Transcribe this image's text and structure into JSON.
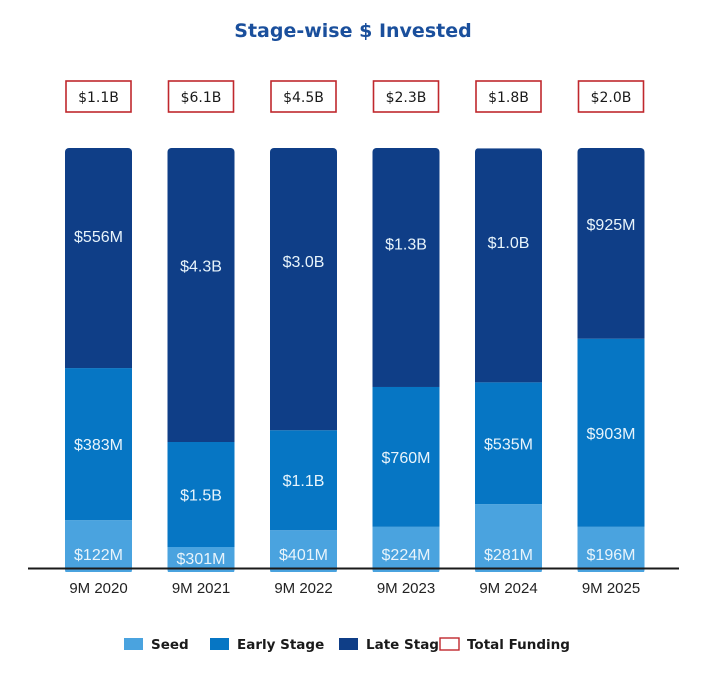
{
  "chart_data": {
    "type": "bar",
    "stacked": true,
    "normalization": "percent-of-bar (100% stacked depiction)",
    "title": "Stage-wise $ Invested",
    "xlabel": "",
    "ylabel": "",
    "grid": false,
    "legend_position": "bottom",
    "categories": [
      "9M 2020",
      "9M 2021",
      "9M 2022",
      "9M 2023",
      "9M 2024",
      "9M 2025"
    ],
    "totals": {
      "name": "Total Funding",
      "labels": [
        "$1.1B",
        "$6.1B",
        "$4.5B",
        "$2.3B",
        "$1.8B",
        "$2.0B"
      ],
      "values_usd_millions": [
        1100,
        6100,
        4500,
        2300,
        1800,
        2000
      ],
      "color": "#c0282d"
    },
    "series": [
      {
        "name": "Seed",
        "color": "#4aa3df",
        "labels": [
          "$122M",
          "$301M",
          "$401M",
          "$224M",
          "$281M",
          "$196M"
        ],
        "values_usd_millions": [
          122,
          301,
          401,
          224,
          281,
          196
        ],
        "displayed_share_percent": [
          11.4,
          5.0,
          9.0,
          9.8,
          15.2,
          9.8
        ]
      },
      {
        "name": "Early Stage",
        "color": "#0676c4",
        "labels": [
          "$383M",
          "$1.5B",
          "$1.1B",
          "$760M",
          "$535M",
          "$903M"
        ],
        "values_usd_millions": [
          383,
          1500,
          1100,
          760,
          535,
          903
        ],
        "displayed_share_percent": [
          36.2,
          25.0,
          23.8,
          33.3,
          29.0,
          44.8
        ]
      },
      {
        "name": "Late Stage",
        "color": "#0f3e87",
        "labels": [
          "$556M",
          "$4.3B",
          "$3.0B",
          "$1.3B",
          "$1.0B",
          "$925M"
        ],
        "values_usd_millions": [
          556,
          4300,
          3000,
          1300,
          1000,
          925
        ],
        "displayed_share_percent": [
          52.4,
          70.0,
          67.2,
          56.9,
          55.7,
          45.5
        ]
      }
    ],
    "ylim_percent": [
      0,
      100
    ],
    "label_text_color": "#e8f4fb",
    "title_color": "#1a4f9c"
  }
}
